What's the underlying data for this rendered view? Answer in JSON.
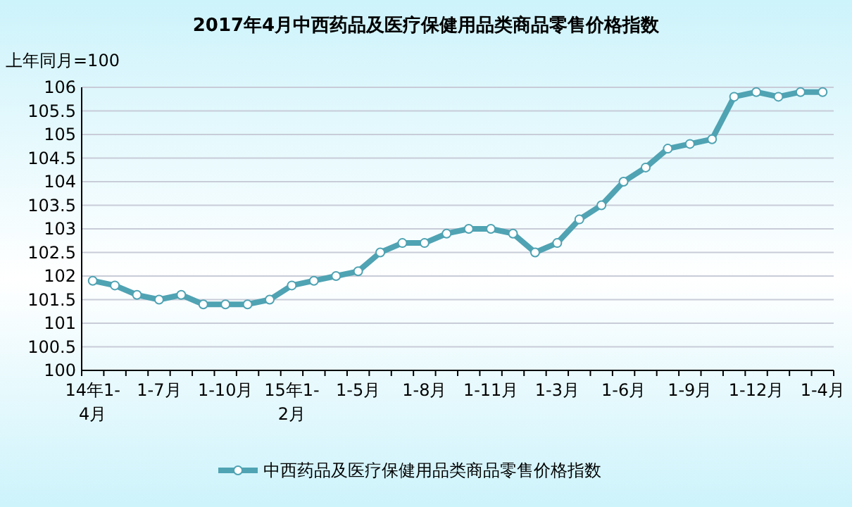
{
  "chart_data": {
    "type": "line",
    "title": "2017年4月中西药品及医疗保健用品类商品零售价格指数",
    "ylabel": "上年同月=100",
    "categories": [
      "14年1-4月",
      null,
      null,
      "1-7月",
      null,
      null,
      "1-10月",
      null,
      null,
      "15年1-2月",
      null,
      null,
      "1-5月",
      null,
      null,
      "1-8月",
      null,
      null,
      "1-11月",
      null,
      null,
      "1-3月",
      null,
      null,
      "1-6月",
      null,
      null,
      "1-9月",
      null,
      null,
      "1-12月",
      null,
      null,
      "1-4月"
    ],
    "series": [
      {
        "name": "中西药品及医疗保健用品类商品零售价格指数",
        "color": "#4fa3b3",
        "values": [
          101.9,
          101.8,
          101.6,
          101.5,
          101.6,
          101.4,
          101.4,
          101.4,
          101.5,
          101.8,
          101.9,
          102.0,
          102.1,
          102.5,
          102.7,
          102.7,
          102.9,
          103.0,
          103.0,
          102.9,
          102.5,
          102.7,
          103.2,
          103.5,
          104.0,
          104.3,
          104.7,
          104.8,
          104.9,
          105.8,
          105.9,
          105.8,
          105.9,
          105.9
        ]
      }
    ],
    "ylim": [
      100,
      106
    ],
    "yticks": [
      100,
      100.5,
      101,
      101.5,
      102,
      102.5,
      103,
      103.5,
      104,
      104.5,
      105,
      105.5,
      106
    ],
    "grid": "y",
    "legend": "bottom",
    "marker": "circle",
    "line_style": "solid"
  }
}
